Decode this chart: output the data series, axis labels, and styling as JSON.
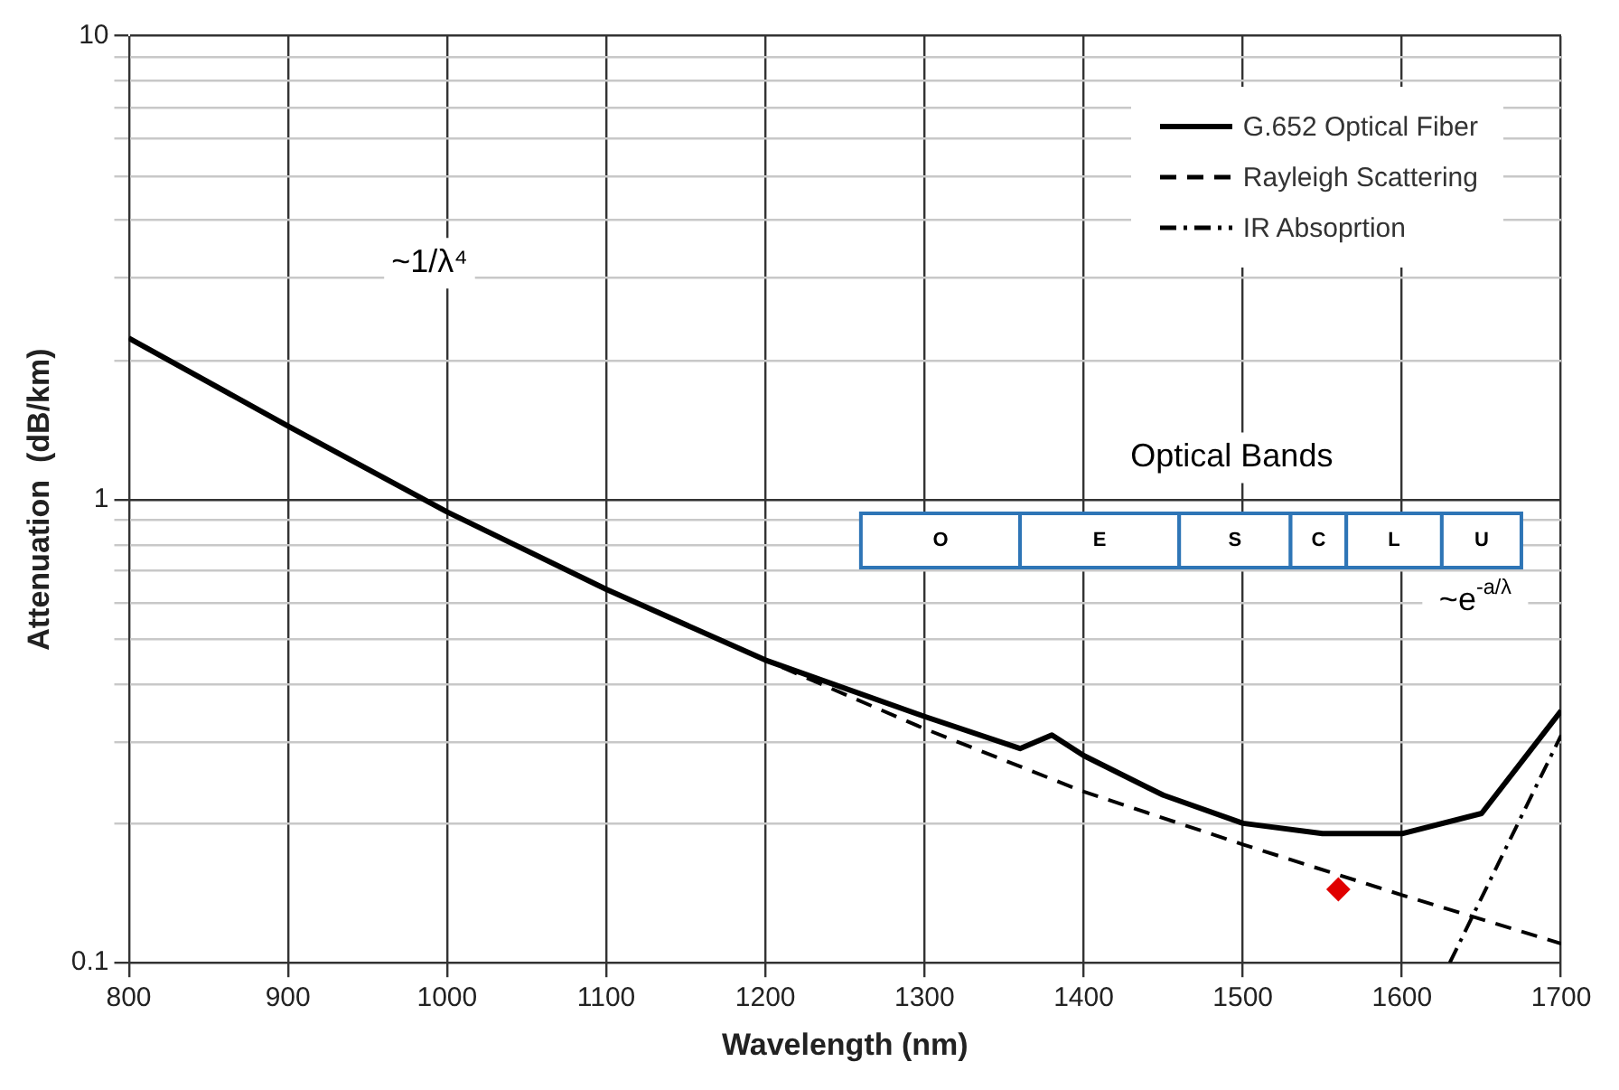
{
  "chart_data": {
    "type": "line",
    "xlabel": "Wavelength (nm)",
    "ylabel": "Attenuation  (dB/km)",
    "xlim": [
      800,
      1700
    ],
    "xticks": [
      800,
      900,
      1000,
      1100,
      1200,
      1300,
      1400,
      1500,
      1600,
      1700
    ],
    "ylim": [
      0.1,
      10
    ],
    "yticks": [
      0.1,
      {
        "value": 0.2,
        "label": null
      },
      {
        "value": 0.3,
        "label": null
      },
      {
        "value": 0.4,
        "label": null
      },
      {
        "value": 0.5,
        "label": null
      },
      {
        "value": 0.6,
        "label": null
      },
      {
        "value": 0.7,
        "label": null
      },
      {
        "value": 0.8,
        "label": null
      },
      {
        "value": 0.9,
        "label": null
      },
      1,
      {
        "value": 2,
        "label": null
      },
      {
        "value": 3,
        "label": null
      },
      {
        "value": 4,
        "label": null
      },
      {
        "value": 5,
        "label": null
      },
      {
        "value": 6,
        "label": null
      },
      {
        "value": 7,
        "label": null
      },
      {
        "value": 8,
        "label": null
      },
      {
        "value": 9,
        "label": null
      },
      10
    ],
    "log": "y",
    "grid": true,
    "legend": "top right",
    "marker": "none",
    "series": [
      {
        "name": "G.652 Optical Fiber",
        "color": "#000000",
        "line_style": "solid",
        "x": [
          800,
          900,
          1000,
          1100,
          1200,
          1300,
          1360,
          1380,
          1400,
          1450,
          1500,
          1550,
          1600,
          1650,
          1700
        ],
        "values": [
          2.23,
          1.44,
          0.94,
          0.64,
          0.45,
          0.34,
          0.29,
          0.31,
          0.28,
          0.23,
          0.2,
          0.19,
          0.19,
          0.21,
          0.35
        ]
      },
      {
        "name": "Rayleigh Scattering",
        "color": "#000000",
        "line_style": "dashed",
        "x": [
          800,
          900,
          1000,
          1100,
          1200,
          1300,
          1400,
          1500,
          1600,
          1700
        ],
        "values": [
          2.23,
          1.44,
          0.94,
          0.64,
          0.45,
          0.32,
          0.234,
          0.18,
          0.14,
          0.11
        ]
      },
      {
        "name": "IR Absoprtion",
        "color": "#000000",
        "line_style": "dashdot",
        "x": [
          1630,
          1700
        ],
        "values": [
          0.1,
          0.31
        ]
      },
      {
        "type": "scatter",
        "color": "#e00000",
        "marker": "diamond",
        "x": [
          1560
        ],
        "values": [
          0.144
        ]
      }
    ],
    "bands": [
      {
        "axis": "x",
        "from": 1260,
        "to": 1360,
        "label": "O",
        "color": "#ffffff"
      },
      {
        "axis": "x",
        "from": 1360,
        "to": 1460,
        "label": "E",
        "color": "#ffffff"
      },
      {
        "axis": "x",
        "from": 1460,
        "to": 1530,
        "label": "S",
        "color": "#ffffff"
      },
      {
        "axis": "x",
        "from": 1530,
        "to": 1565,
        "label": "C",
        "color": "#ffffff"
      },
      {
        "axis": "x",
        "from": 1565,
        "to": 1625,
        "label": "L",
        "color": "#ffffff"
      },
      {
        "axis": "x",
        "from": 1625,
        "to": 1675,
        "label": "U",
        "color": "#ffffff"
      }
    ],
    "annotations": [
      "~1/λ⁴",
      "Optical Bands",
      "~e$^{-a/λ}$"
    ]
  }
}
